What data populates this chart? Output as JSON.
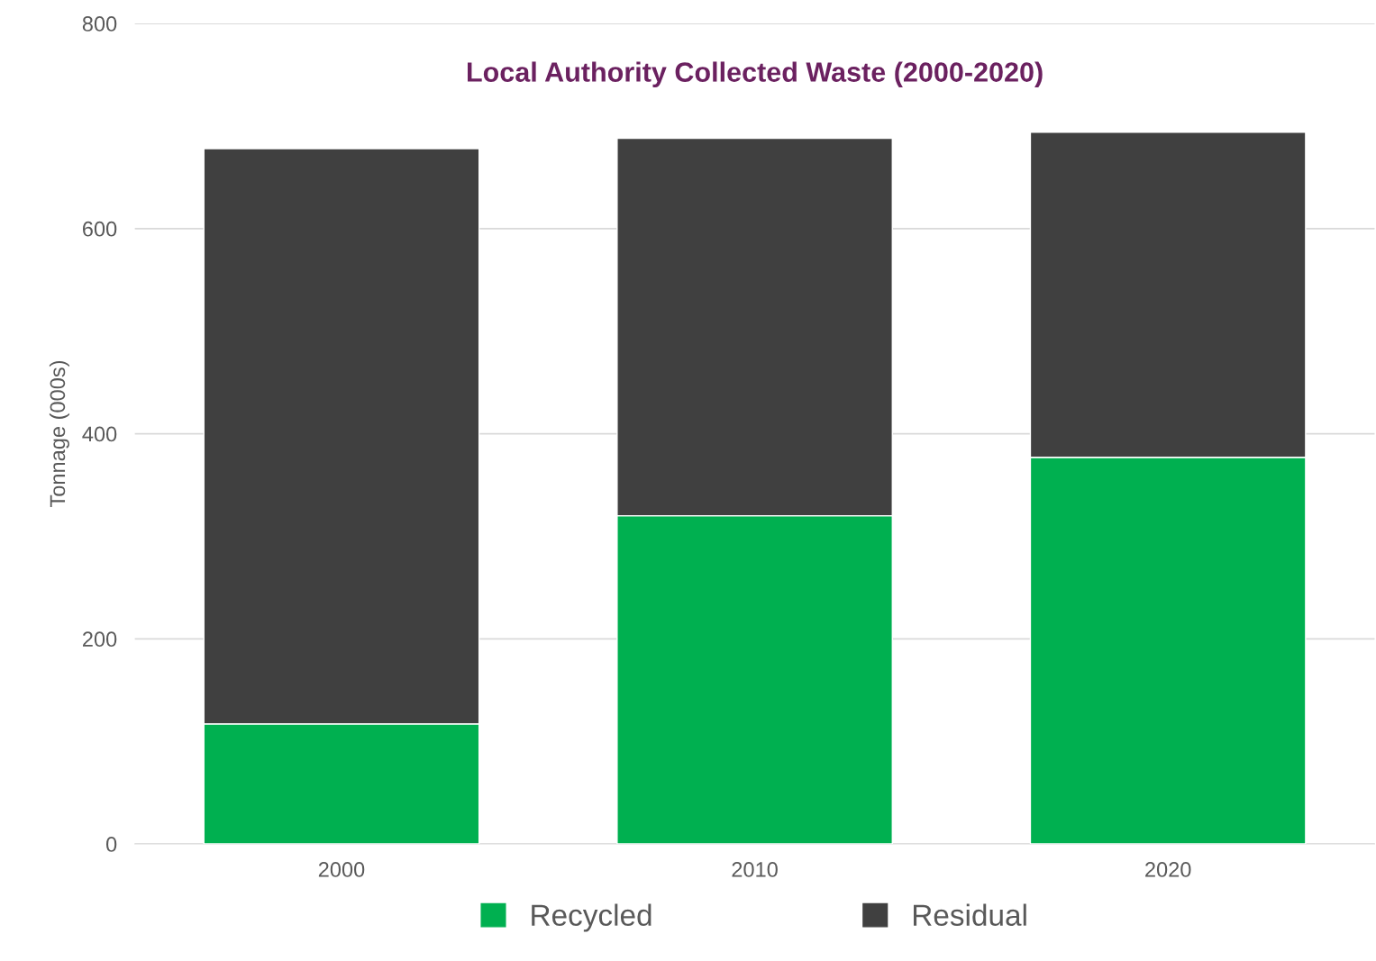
{
  "chart_data": {
    "type": "bar",
    "title": "Local Authority Collected Waste (2000-2020)",
    "ylabel": "Tonnage (000s)",
    "categories": [
      "2000",
      "2010",
      "2020"
    ],
    "stacked": true,
    "series": [
      {
        "name": "Recycled",
        "color": "#00b050",
        "values": [
          117,
          320,
          377
        ]
      },
      {
        "name": "Residual",
        "color": "#404040",
        "values": [
          561,
          368,
          317
        ]
      }
    ],
    "ylim": [
      0,
      800
    ],
    "yticks": [
      0,
      200,
      400,
      600,
      800
    ],
    "grid": "y",
    "legend": "bottom"
  }
}
